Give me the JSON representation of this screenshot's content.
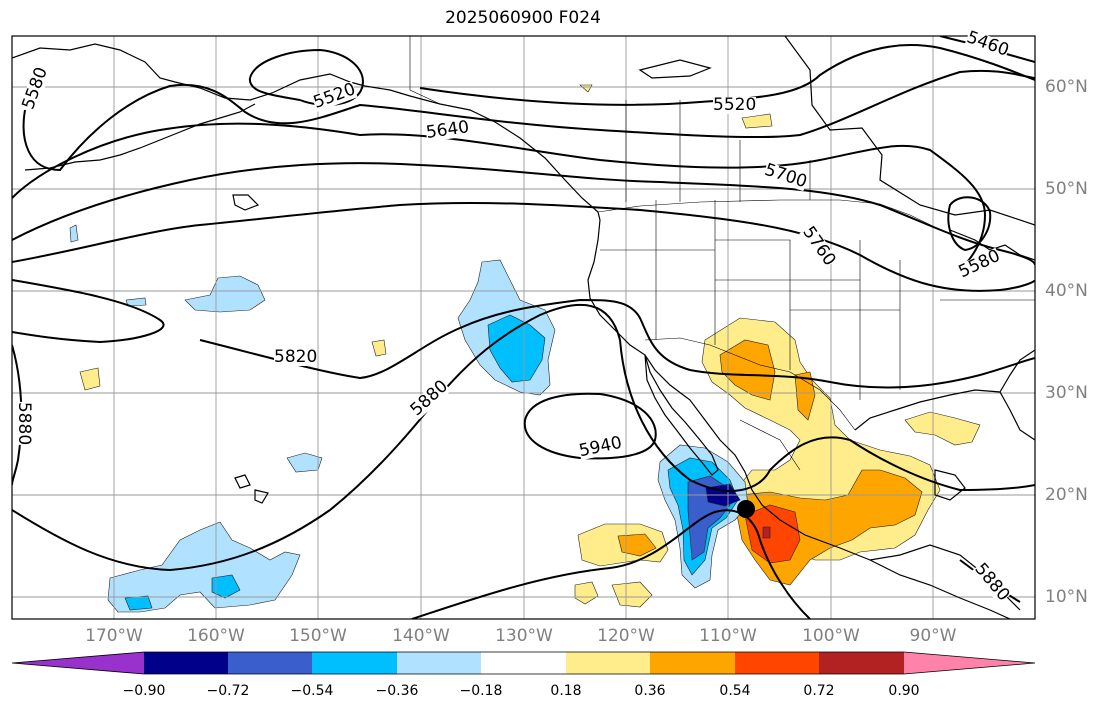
{
  "title": "2025060900 F024",
  "lat_labels": [
    "60°N",
    "50°N",
    "40°N",
    "30°N",
    "20°N",
    "10°N"
  ],
  "lon_labels": [
    "170°W",
    "160°W",
    "150°W",
    "140°W",
    "130°W",
    "120°W",
    "110°W",
    "100°W",
    "90°W"
  ],
  "contour_labels": [
    "5460",
    "5520",
    "5520",
    "5580",
    "5580",
    "5640",
    "5700",
    "5760",
    "5820",
    "5880",
    "5880",
    "5880",
    "5940"
  ],
  "colorbar": {
    "tick_labels": [
      "−0.90",
      "−0.72",
      "−0.54",
      "−0.36",
      "−0.18",
      "0.18",
      "0.36",
      "0.54",
      "0.72",
      "0.90"
    ],
    "colors": [
      "#9932cc",
      "#00008b",
      "#3a5fcd",
      "#00bfff",
      "#b0e2ff",
      "#ffffff",
      "#ffec8b",
      "#ffa500",
      "#ff4500",
      "#b22222",
      "#ff82ab"
    ]
  },
  "storm_marker": {
    "lon": -108,
    "lat": 19
  }
}
